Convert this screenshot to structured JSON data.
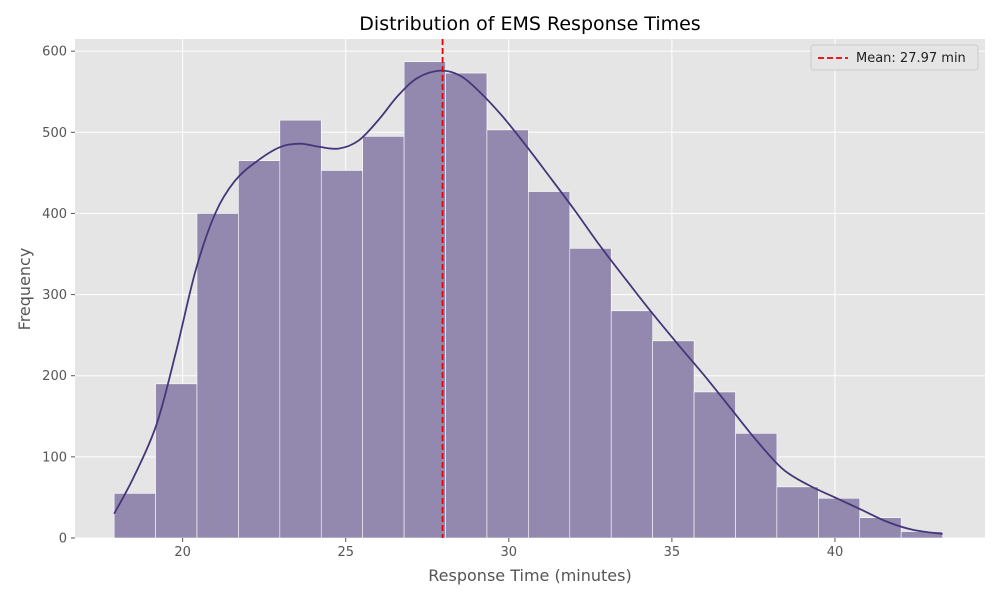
{
  "chart_data": {
    "type": "bar",
    "title": "Distribution of EMS Response Times",
    "xlabel": "Response Time (minutes)",
    "ylabel": "Frequency",
    "xlim": [
      16.7,
      44.6
    ],
    "ylim": [
      0,
      615
    ],
    "xticks": [
      20,
      25,
      30,
      35,
      40
    ],
    "yticks": [
      0,
      100,
      200,
      300,
      400,
      500,
      600
    ],
    "grid": true,
    "legend_position": "top-right",
    "bin_edges": [
      17.9,
      19.17,
      20.44,
      21.71,
      22.98,
      24.25,
      25.52,
      26.79,
      28.06,
      29.33,
      30.6,
      31.87,
      33.14,
      34.41,
      35.68,
      36.95,
      38.22,
      39.49,
      40.76,
      42.03,
      43.3
    ],
    "series": [
      {
        "values": [
          55,
          190,
          400,
          465,
          515,
          453,
          495,
          587,
          573,
          503,
          427,
          357,
          280,
          243,
          180,
          129,
          63,
          49,
          25,
          8
        ]
      }
    ],
    "kde": {
      "x": [
        17.9,
        18.5,
        19.2,
        19.8,
        20.4,
        21.0,
        21.6,
        22.3,
        23.0,
        23.6,
        24.2,
        24.8,
        25.4,
        26.0,
        26.6,
        27.2,
        27.9,
        28.5,
        29.1,
        29.8,
        30.5,
        31.2,
        32.0,
        32.8,
        33.6,
        34.4,
        35.2,
        36.0,
        36.8,
        37.6,
        38.4,
        39.2,
        40.0,
        40.8,
        41.6,
        42.4,
        43.3
      ],
      "y": [
        30,
        75,
        140,
        230,
        330,
        400,
        440,
        465,
        482,
        486,
        482,
        480,
        490,
        515,
        545,
        567,
        576,
        570,
        550,
        520,
        485,
        448,
        405,
        360,
        318,
        277,
        238,
        200,
        160,
        120,
        85,
        65,
        50,
        35,
        20,
        10,
        5
      ]
    },
    "mean_line": {
      "x": 27.97,
      "label": "Mean: 27.97 min"
    },
    "colors": {
      "bar_fill": "#9389ae",
      "bar_edge": "#ffffff",
      "kde_line": "#45367a",
      "mean_line": "#ee0000",
      "plot_background": "#e5e5e5",
      "grid": "#ffffff"
    }
  }
}
